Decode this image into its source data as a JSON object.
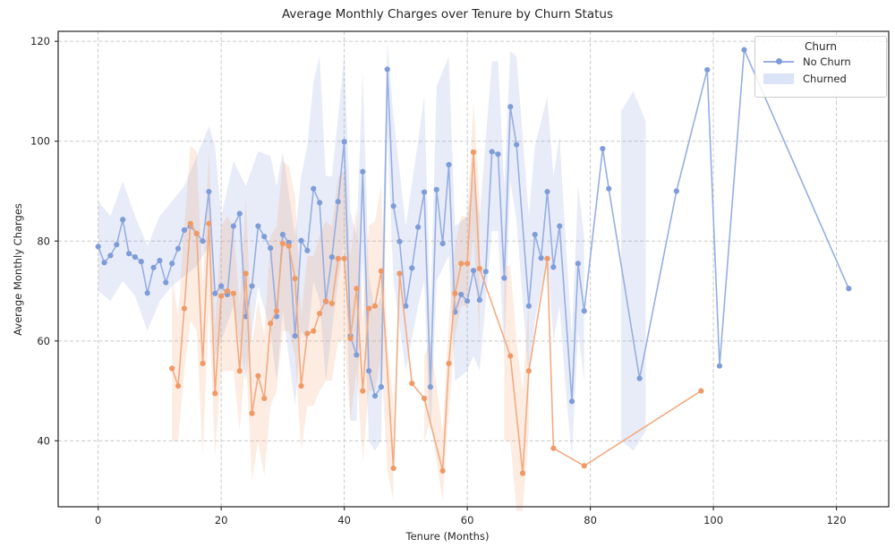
{
  "chart_data": {
    "type": "line",
    "title": "Average Monthly Charges over Tenure by Churn Status",
    "xlabel": "Tenure (Months)",
    "ylabel": "Average Monthly Charges",
    "legend_title": "Churn",
    "legend_position": "upper right",
    "grid": "dashed both axes",
    "x_ticks": [
      0,
      20,
      40,
      60,
      80,
      100,
      120
    ],
    "y_ticks": [
      120,
      100,
      80,
      60,
      40
    ],
    "xlim": [
      -6.5,
      128.5
    ],
    "ylim": [
      26.8,
      122
    ],
    "colors": {
      "no_churn_line": "#96aee2",
      "no_churn_marker": "#7e9cd8",
      "no_churn_band": "rgba(140,162,218,0.20)",
      "churned_line": "#f2ab81",
      "churned_marker": "#ef9a66",
      "churned_band": "rgba(238,160,110,0.20)",
      "grid": "#c9c9c9",
      "frame": "#333333",
      "legend_patch": "#dbe3f6"
    },
    "series": [
      {
        "name": "No Churn",
        "points": [
          [
            0,
            78.9
          ],
          [
            1,
            75.7
          ],
          [
            2,
            77.1
          ],
          [
            3,
            79.3
          ],
          [
            4,
            84.3
          ],
          [
            5,
            77.5
          ],
          [
            6,
            76.8
          ],
          [
            7,
            75.9
          ],
          [
            8,
            69.6
          ],
          [
            9,
            74.7
          ],
          [
            10,
            76.1
          ],
          [
            11,
            71.7
          ],
          [
            12,
            75.5
          ],
          [
            13,
            78.5
          ],
          [
            14,
            82.2
          ],
          [
            15,
            83.0
          ],
          [
            16,
            81.5
          ],
          [
            17,
            80.0
          ],
          [
            18,
            89.9
          ],
          [
            19,
            69.5
          ],
          [
            20,
            71.0
          ],
          [
            21,
            69.3
          ],
          [
            22,
            83.0
          ],
          [
            23,
            85.5
          ],
          [
            24,
            64.9
          ],
          [
            25,
            71.0
          ],
          [
            26,
            83.0
          ],
          [
            27,
            80.9
          ],
          [
            28,
            78.6
          ],
          [
            29,
            64.9
          ],
          [
            30,
            81.3
          ],
          [
            31,
            79.7
          ],
          [
            32,
            61.0
          ],
          [
            33,
            80.1
          ],
          [
            34,
            78.1
          ],
          [
            35,
            90.5
          ],
          [
            36,
            87.7
          ],
          [
            37,
            67.9
          ],
          [
            38,
            76.8
          ],
          [
            39,
            87.9
          ],
          [
            40,
            99.9
          ],
          [
            41,
            61.0
          ],
          [
            42,
            57.2
          ],
          [
            43,
            93.9
          ],
          [
            44,
            54.0
          ],
          [
            45,
            49.0
          ],
          [
            46,
            50.8
          ],
          [
            47,
            114.4
          ],
          [
            48,
            87.0
          ],
          [
            49,
            79.9
          ],
          [
            50,
            67.0
          ],
          [
            51,
            74.6
          ],
          [
            52,
            82.8
          ],
          [
            53,
            89.8
          ],
          [
            54,
            50.8
          ],
          [
            55,
            90.3
          ],
          [
            56,
            79.5
          ],
          [
            57,
            95.3
          ],
          [
            58,
            65.8
          ],
          [
            59,
            69.3
          ],
          [
            60,
            68.0
          ],
          [
            61,
            74.1
          ],
          [
            62,
            68.2
          ],
          [
            63,
            73.9
          ],
          [
            64,
            97.9
          ],
          [
            65,
            97.4
          ],
          [
            66,
            72.6
          ],
          [
            67,
            106.9
          ],
          [
            68,
            99.3
          ],
          [
            70,
            67.0
          ],
          [
            71,
            81.3
          ],
          [
            72,
            76.6
          ],
          [
            73,
            89.9
          ],
          [
            74,
            74.8
          ],
          [
            75,
            83.0
          ],
          [
            77,
            47.9
          ],
          [
            78,
            75.5
          ],
          [
            79,
            66.0
          ],
          [
            82,
            98.5
          ],
          [
            83,
            90.5
          ],
          [
            88,
            52.5
          ],
          [
            94,
            90.0
          ],
          [
            99,
            114.3
          ],
          [
            101,
            55.0
          ],
          [
            105,
            118.3
          ],
          [
            122,
            70.5
          ]
        ],
        "band_segments": [
          [
            [
              0,
              70,
              88
            ],
            [
              2,
              68,
              85
            ],
            [
              4,
              72,
              92
            ],
            [
              6,
              69,
              85
            ],
            [
              8,
              62,
              79
            ],
            [
              10,
              68,
              85
            ],
            [
              12,
              71,
              88
            ],
            [
              14,
              73,
              91
            ],
            [
              16,
              75,
              97
            ],
            [
              18,
              79,
              103
            ],
            [
              19,
              57,
              99
            ],
            [
              20,
              60,
              85
            ],
            [
              22,
              67,
              96
            ],
            [
              24,
              52,
              91
            ],
            [
              26,
              71,
              98
            ],
            [
              28,
              62,
              97
            ],
            [
              29,
              52,
              91
            ],
            [
              30,
              66,
              98
            ],
            [
              32,
              47,
              81
            ],
            [
              33,
              62,
              93
            ],
            [
              34,
              60,
              99
            ],
            [
              35,
              72,
              112
            ],
            [
              36,
              68,
              117
            ],
            [
              37,
              52,
              93
            ],
            [
              38,
              62,
              93
            ],
            [
              39,
              72,
              105
            ],
            [
              40,
              80,
              117
            ],
            [
              41,
              44,
              86
            ],
            [
              42,
              44,
              81
            ],
            [
              43,
              77,
              114
            ],
            [
              44,
              40,
              73
            ],
            [
              45,
              38,
              66
            ],
            [
              46,
              40,
              69
            ],
            [
              47,
              102,
              120
            ],
            [
              48,
              72,
              105
            ],
            [
              50,
              54,
              83
            ],
            [
              52,
              67,
              100
            ],
            [
              53,
              72,
              109
            ],
            [
              54,
              40,
              66
            ],
            [
              55,
              72,
              111
            ],
            [
              57,
              77,
              117
            ],
            [
              58,
              52,
              83
            ],
            [
              60,
              54,
              85
            ],
            [
              61,
              57,
              93
            ],
            [
              62,
              54,
              85
            ],
            [
              64,
              82,
              116
            ],
            [
              65,
              82,
              116
            ],
            [
              66,
              57,
              91
            ],
            [
              67,
              92,
              118
            ],
            [
              68,
              84,
              117
            ],
            [
              70,
              52,
              85
            ],
            [
              71,
              64,
              99
            ],
            [
              73,
              77,
              109
            ],
            [
              74,
              60,
              93
            ],
            [
              75,
              67,
              101
            ],
            [
              76,
              50,
              80
            ],
            [
              77,
              37,
              61
            ],
            [
              78,
              62,
              91
            ],
            [
              79,
              52,
              81
            ]
          ],
          [
            [
              85,
              40,
              106
            ],
            [
              87,
              38,
              110
            ],
            [
              89,
              42,
              104
            ]
          ]
        ]
      },
      {
        "name": "Churned",
        "points": [
          [
            12,
            54.5
          ],
          [
            13,
            51.0
          ],
          [
            14,
            66.5
          ],
          [
            15,
            83.5
          ],
          [
            16,
            81.5
          ],
          [
            17,
            55.5
          ],
          [
            18,
            83.5
          ],
          [
            19,
            49.5
          ],
          [
            20,
            69.0
          ],
          [
            21,
            70.0
          ],
          [
            22,
            69.5
          ],
          [
            23,
            54.0
          ],
          [
            24,
            73.5
          ],
          [
            25,
            45.5
          ],
          [
            26,
            53.0
          ],
          [
            27,
            48.5
          ],
          [
            28,
            63.5
          ],
          [
            29,
            66.0
          ],
          [
            30,
            79.5
          ],
          [
            31,
            79.0
          ],
          [
            32,
            72.5
          ],
          [
            33,
            51.0
          ],
          [
            34,
            61.5
          ],
          [
            35,
            62.0
          ],
          [
            36,
            65.5
          ],
          [
            37,
            68.0
          ],
          [
            38,
            67.5
          ],
          [
            39,
            76.5
          ],
          [
            40,
            76.5
          ],
          [
            41,
            60.5
          ],
          [
            42,
            70.5
          ],
          [
            43,
            50.0
          ],
          [
            44,
            66.5
          ],
          [
            45,
            67.0
          ],
          [
            46,
            74.0
          ],
          [
            48,
            34.5
          ],
          [
            49,
            73.5
          ],
          [
            51,
            51.5
          ],
          [
            53,
            48.5
          ],
          [
            56,
            34.0
          ],
          [
            57,
            55.5
          ],
          [
            58,
            69.5
          ],
          [
            59,
            75.5
          ],
          [
            60,
            75.5
          ],
          [
            61,
            97.8
          ],
          [
            62,
            74.5
          ],
          [
            67,
            57.0
          ],
          [
            69,
            33.5
          ],
          [
            70,
            54.0
          ],
          [
            73,
            76.5
          ],
          [
            74,
            38.5
          ],
          [
            79,
            35.0
          ],
          [
            98,
            50.0
          ]
        ],
        "band_segments": [
          [
            [
              12,
              40,
              73
            ],
            [
              13,
              40,
              65
            ],
            [
              14,
              54,
              83
            ],
            [
              15,
              64,
              99
            ],
            [
              16,
              62,
              98
            ],
            [
              17,
              37,
              71
            ],
            [
              18,
              67,
              98
            ],
            [
              19,
              37,
              63
            ],
            [
              20,
              54,
              83
            ],
            [
              21,
              54,
              85
            ],
            [
              22,
              54,
              83
            ],
            [
              23,
              42,
              67
            ],
            [
              24,
              57,
              89
            ],
            [
              25,
              32,
              59
            ],
            [
              26,
              40,
              68
            ],
            [
              27,
              33,
              61
            ],
            [
              28,
              47,
              81
            ],
            [
              29,
              50,
              83
            ],
            [
              30,
              62,
              96
            ],
            [
              31,
              62,
              95
            ],
            [
              32,
              57,
              89
            ],
            [
              33,
              38,
              65
            ],
            [
              34,
              47,
              77
            ],
            [
              35,
              47,
              77
            ],
            [
              36,
              50,
              81
            ],
            [
              37,
              52,
              84
            ],
            [
              38,
              52,
              83
            ],
            [
              39,
              60,
              93
            ],
            [
              40,
              60,
              94
            ],
            [
              41,
              44,
              77
            ],
            [
              42,
              54,
              87
            ],
            [
              43,
              36,
              64
            ],
            [
              44,
              50,
              83
            ],
            [
              45,
              50,
              84
            ],
            [
              46,
              57,
              91
            ],
            [
              47,
              34,
              60
            ],
            [
              48,
              28,
              47
            ]
          ],
          [
            [
              53,
              40,
              57
            ],
            [
              54,
              44,
              60
            ],
            [
              56,
              28,
              42
            ],
            [
              57,
              46,
              64
            ],
            [
              58,
              61,
              79
            ],
            [
              59,
              67,
              85
            ],
            [
              60,
              67,
              85
            ],
            [
              61,
              82,
              108
            ],
            [
              62,
              60,
              88
            ]
          ],
          [
            [
              66,
              40,
              75
            ],
            [
              67,
              40,
              75
            ],
            [
              68,
              26,
              60
            ],
            [
              69,
              26,
              50
            ],
            [
              70,
              42,
              68
            ]
          ]
        ]
      }
    ]
  }
}
